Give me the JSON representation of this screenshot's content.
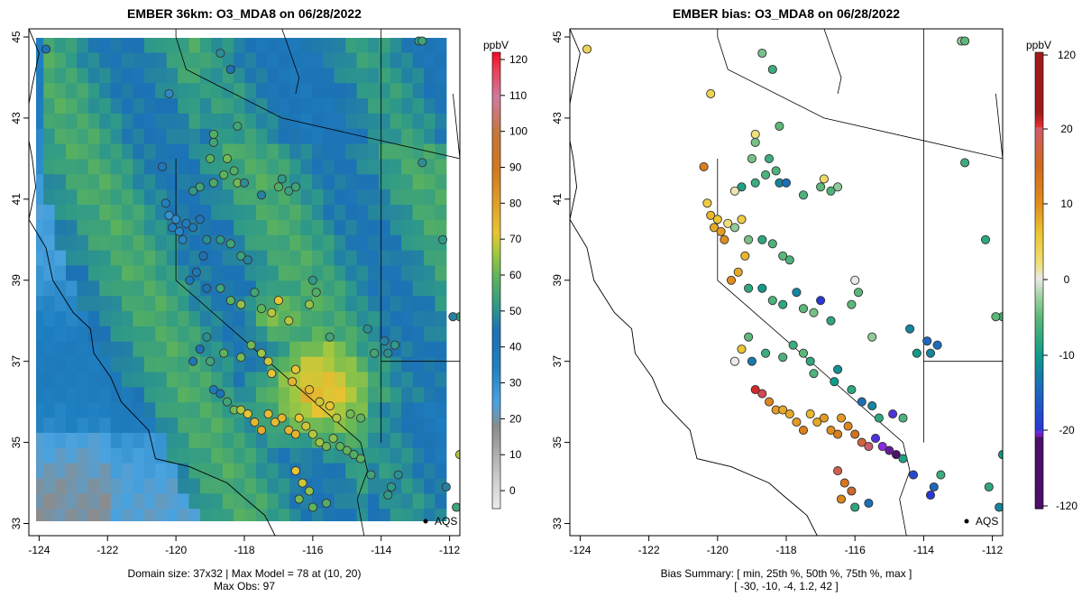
{
  "colors": {
    "background": "#ffffff",
    "ocean_model": "#1f7fc0",
    "land_model": "#2f9a88",
    "hotspot": "#e7c533",
    "border": "#000000"
  },
  "chart_data": [
    {
      "type": "heatmap",
      "title": "EMBER 36km: O3_MDA8 on 06/28/2022",
      "xlim": [
        -124.3,
        -111.7
      ],
      "ylim": [
        32.7,
        45.2
      ],
      "x_ticks": [
        -124,
        -122,
        -120,
        -118,
        -116,
        -114,
        -112
      ],
      "y_ticks": [
        33,
        35,
        37,
        39,
        41,
        43,
        45
      ],
      "colorbar": {
        "label": "ppbV",
        "ticks": [
          0,
          10,
          20,
          30,
          40,
          50,
          60,
          70,
          80,
          90,
          100,
          110,
          120
        ],
        "range": [
          -5,
          122
        ]
      },
      "annotation": "AQS",
      "footer": [
        "Domain size: 37x32 | Max Model = 78 at (10, 20)",
        "Max Obs: 97"
      ],
      "grid": false,
      "legend": "none"
    },
    {
      "type": "scatter",
      "title": "EMBER bias: O3_MDA8 on 06/28/2022",
      "xlim": [
        -124.3,
        -111.7
      ],
      "ylim": [
        32.7,
        45.2
      ],
      "x_ticks": [
        -124,
        -122,
        -120,
        -118,
        -116,
        -114,
        -112
      ],
      "y_ticks": [
        33,
        35,
        37,
        39,
        41,
        43,
        45
      ],
      "colorbar": {
        "label": "ppbV",
        "ticks": [
          -120,
          -20,
          -10,
          0,
          10,
          20,
          120
        ]
      },
      "annotation": "AQS",
      "footer": [
        "Bias Summary: [ min, 25th %, 50th %, 75th %, max ]",
        "[ -30,  -10,  -4,  1.2,  42 ]"
      ],
      "bias_summary": {
        "min": -30,
        "p25": -10,
        "p50": -4,
        "p75": 1.2,
        "max": 42
      },
      "grid": false,
      "legend": "none"
    }
  ],
  "sites": [
    [
      -123.8,
      44.7,
      45,
      4
    ],
    [
      -120.2,
      43.6,
      32,
      4
    ],
    [
      -112.9,
      44.9,
      52,
      -3
    ],
    [
      -112.8,
      44.9,
      55,
      -5
    ],
    [
      -118.4,
      44.2,
      45,
      -7
    ],
    [
      -118.7,
      44.6,
      50,
      -4
    ],
    [
      -118.2,
      42.8,
      55,
      -5
    ],
    [
      -118.9,
      42.6,
      58,
      2
    ],
    [
      -118.9,
      42.4,
      55,
      -4
    ],
    [
      -119.0,
      42.0,
      60,
      -4
    ],
    [
      -118.5,
      42.0,
      62,
      -7
    ],
    [
      -118.3,
      41.7,
      58,
      -6
    ],
    [
      -118.2,
      41.4,
      62,
      -12
    ],
    [
      -118.6,
      41.6,
      60,
      -6
    ],
    [
      -118.9,
      41.4,
      57,
      -7
    ],
    [
      -119.3,
      41.3,
      55,
      -9
    ],
    [
      -119.5,
      41.2,
      52,
      1
    ],
    [
      -118.0,
      41.4,
      50,
      -14
    ],
    [
      -117.5,
      41.1,
      48,
      -6
    ],
    [
      -117.0,
      41.3,
      58,
      -5
    ],
    [
      -116.9,
      41.5,
      52,
      3
    ],
    [
      -116.7,
      41.2,
      54,
      -6
    ],
    [
      -116.5,
      41.3,
      55,
      -3
    ],
    [
      -112.8,
      41.9,
      50,
      -7
    ],
    [
      -112.2,
      40.0,
      52,
      -8
    ],
    [
      -111.7,
      38.1,
      55,
      -6
    ],
    [
      -111.9,
      38.1,
      48,
      -5
    ],
    [
      -120.4,
      41.8,
      42,
      12
    ],
    [
      -120.3,
      40.9,
      35,
      5
    ],
    [
      -120.2,
      40.6,
      30,
      7
    ],
    [
      -120.0,
      40.5,
      32,
      6
    ],
    [
      -120.1,
      40.3,
      35,
      8
    ],
    [
      -119.9,
      40.2,
      33,
      9
    ],
    [
      -119.8,
      40.0,
      34,
      10
    ],
    [
      -119.7,
      40.4,
      36,
      2
    ],
    [
      -119.5,
      40.3,
      40,
      -3
    ],
    [
      -119.3,
      40.5,
      42,
      5
    ],
    [
      -119.1,
      40.0,
      50,
      -4
    ],
    [
      -118.7,
      40.0,
      52,
      -8
    ],
    [
      -118.4,
      39.9,
      55,
      -6
    ],
    [
      -118.1,
      39.6,
      54,
      -5
    ],
    [
      -117.9,
      39.5,
      48,
      -6
    ],
    [
      -119.2,
      39.6,
      45,
      7
    ],
    [
      -119.4,
      39.2,
      40,
      8
    ],
    [
      -119.6,
      39.0,
      42,
      10
    ],
    [
      -119.1,
      38.8,
      45,
      -8
    ],
    [
      -118.7,
      38.8,
      55,
      -10
    ],
    [
      -118.4,
      38.5,
      60,
      -6
    ],
    [
      -118.1,
      38.4,
      65,
      -8
    ],
    [
      -117.7,
      38.7,
      55,
      -12
    ],
    [
      -117.5,
      38.3,
      60,
      -5
    ],
    [
      -117.2,
      38.2,
      68,
      -4
    ],
    [
      -117.0,
      38.5,
      72,
      -20
    ],
    [
      -116.7,
      38.0,
      68,
      -8
    ],
    [
      -116.1,
      38.4,
      65,
      -5
    ],
    [
      -116.0,
      39.0,
      52,
      0
    ],
    [
      -115.9,
      38.7,
      58,
      -5
    ],
    [
      -115.5,
      37.6,
      55,
      -3
    ],
    [
      -114.4,
      37.8,
      50,
      -12
    ],
    [
      -113.9,
      37.5,
      48,
      -15
    ],
    [
      -113.6,
      37.4,
      52,
      -14
    ],
    [
      -113.8,
      37.2,
      50,
      -12
    ],
    [
      -114.2,
      37.2,
      55,
      -10
    ],
    [
      -119.3,
      37.3,
      45,
      6
    ],
    [
      -119.1,
      37.6,
      50,
      -5
    ],
    [
      -119.5,
      37.0,
      42,
      0
    ],
    [
      -119.0,
      37.0,
      55,
      -13
    ],
    [
      -118.6,
      37.2,
      60,
      -7
    ],
    [
      -118.1,
      37.1,
      62,
      -6
    ],
    [
      -117.8,
      37.4,
      62,
      -7
    ],
    [
      -117.5,
      37.2,
      66,
      -5
    ],
    [
      -117.3,
      37.0,
      70,
      -8
    ],
    [
      -117.2,
      36.7,
      72,
      -6
    ],
    [
      -116.6,
      36.5,
      76,
      -10
    ],
    [
      -116.1,
      36.3,
      74,
      -8
    ],
    [
      -116.5,
      36.8,
      72,
      -11
    ],
    [
      -115.8,
      36.0,
      70,
      -14
    ],
    [
      -115.5,
      35.9,
      72,
      -12
    ],
    [
      -115.3,
      35.6,
      68,
      -8
    ],
    [
      -114.6,
      35.6,
      60,
      -6
    ],
    [
      -114.9,
      35.7,
      62,
      -22
    ],
    [
      -114.6,
      34.6,
      60,
      -9
    ],
    [
      -113.7,
      33.9,
      52,
      -15
    ],
    [
      -113.5,
      34.2,
      50,
      -7
    ],
    [
      -118.9,
      36.3,
      38,
      28
    ],
    [
      -118.7,
      36.2,
      45,
      22
    ],
    [
      -118.5,
      36.0,
      55,
      11
    ],
    [
      -118.3,
      35.8,
      62,
      9
    ],
    [
      -118.1,
      35.8,
      68,
      8
    ],
    [
      -117.9,
      35.7,
      72,
      8
    ],
    [
      -117.7,
      35.5,
      75,
      9
    ],
    [
      -117.5,
      35.3,
      78,
      12
    ],
    [
      -117.3,
      35.7,
      74,
      7
    ],
    [
      -117.1,
      35.5,
      74,
      8
    ],
    [
      -116.9,
      35.6,
      76,
      9
    ],
    [
      -116.7,
      35.3,
      76,
      10
    ],
    [
      -116.5,
      35.2,
      76,
      12
    ],
    [
      -116.4,
      35.6,
      72,
      9
    ],
    [
      -116.2,
      35.4,
      70,
      11
    ],
    [
      -116.0,
      35.2,
      68,
      14
    ],
    [
      -115.8,
      35.0,
      66,
      17
    ],
    [
      -115.6,
      34.9,
      62,
      20
    ],
    [
      -115.4,
      35.1,
      64,
      -22
    ],
    [
      -115.2,
      34.9,
      60,
      -25
    ],
    [
      -115.0,
      34.8,
      60,
      -28
    ],
    [
      -114.8,
      34.7,
      58,
      -30
    ],
    [
      -116.5,
      34.3,
      72,
      18
    ],
    [
      -116.3,
      34.0,
      70,
      13
    ],
    [
      -116.1,
      33.8,
      65,
      16
    ],
    [
      -116.4,
      33.6,
      62,
      11
    ],
    [
      -116.0,
      33.4,
      60,
      -8
    ],
    [
      -115.6,
      33.5,
      58,
      -14
    ],
    [
      -114.3,
      34.2,
      55,
      -18
    ],
    [
      -113.8,
      33.7,
      52,
      -20
    ],
    [
      -112.1,
      33.9,
      48,
      -8
    ],
    [
      -111.8,
      33.4,
      55,
      -12
    ],
    [
      -111.7,
      34.7,
      68,
      -10
    ]
  ]
}
